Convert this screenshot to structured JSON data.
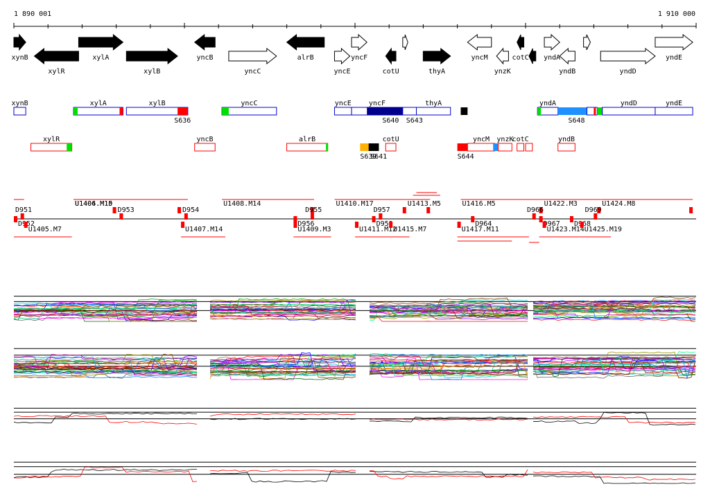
{
  "scale": {
    "start_label": "1 890 001",
    "end_label": "1 910 000",
    "bp_start": 1890001,
    "bp_end": 1910000
  },
  "genes": [
    {
      "name": "xynB",
      "start": 1890001,
      "end": 1890350,
      "strand": "+",
      "fill": "black"
    },
    {
      "name": "xylR",
      "start": 1890600,
      "end": 1891900,
      "strand": "-",
      "fill": "black"
    },
    {
      "name": "xylA",
      "start": 1891900,
      "end": 1893200,
      "strand": "+",
      "fill": "black"
    },
    {
      "name": "xylB",
      "start": 1893300,
      "end": 1894800,
      "strand": "+",
      "fill": "black"
    },
    {
      "name": "yncB",
      "start": 1895300,
      "end": 1895900,
      "strand": "-",
      "fill": "black"
    },
    {
      "name": "yncC",
      "start": 1896300,
      "end": 1897700,
      "strand": "+",
      "fill": "white"
    },
    {
      "name": "alrB",
      "start": 1898000,
      "end": 1899100,
      "strand": "-",
      "fill": "black"
    },
    {
      "name": "yncE",
      "start": 1899400,
      "end": 1899850,
      "strand": "+",
      "fill": "white"
    },
    {
      "name": "yncF",
      "start": 1899900,
      "end": 1900350,
      "strand": "+",
      "fill": "white"
    },
    {
      "name": "cotU",
      "start": 1900900,
      "end": 1901200,
      "strand": "-",
      "fill": "black"
    },
    {
      "name": "",
      "start": 1901400,
      "end": 1901550,
      "strand": "+",
      "fill": "white"
    },
    {
      "name": "thyA",
      "start": 1902000,
      "end": 1902800,
      "strand": "+",
      "fill": "black"
    },
    {
      "name": "yncM",
      "start": 1903300,
      "end": 1904000,
      "strand": "-",
      "fill": "white"
    },
    {
      "name": "ynzK",
      "start": 1904150,
      "end": 1904500,
      "strand": "-",
      "fill": "white"
    },
    {
      "name": "cotC",
      "start": 1904750,
      "end": 1904950,
      "strand": "-",
      "fill": "black"
    },
    {
      "name": "",
      "start": 1905100,
      "end": 1905300,
      "strand": "-",
      "fill": "black"
    },
    {
      "name": "yndA",
      "start": 1905550,
      "end": 1906000,
      "strand": "+",
      "fill": "white"
    },
    {
      "name": "yndB",
      "start": 1906000,
      "end": 1906450,
      "strand": "-",
      "fill": "white"
    },
    {
      "name": "",
      "start": 1906700,
      "end": 1906900,
      "strand": "+",
      "fill": "white"
    },
    {
      "name": "yndD",
      "start": 1907200,
      "end": 1908800,
      "strand": "+",
      "fill": "white"
    },
    {
      "name": "yndE",
      "start": 1908800,
      "end": 1909900,
      "strand": "+",
      "fill": "white"
    }
  ],
  "features_plus": [
    {
      "name": "xynB",
      "start": 1890001,
      "end": 1890350
    },
    {
      "name": "xylA",
      "start": 1891750,
      "end": 1893200,
      "tags": [
        {
          "s": 1891750,
          "e": 1891870,
          "c": "#00e000"
        },
        {
          "s": 1893100,
          "e": 1893200,
          "c": "#ff0000"
        }
      ]
    },
    {
      "name": "xylB",
      "start": 1893300,
      "end": 1895100,
      "tags": [
        {
          "s": 1894800,
          "e": 1895100,
          "c": "#ff0000"
        }
      ],
      "sub": "S636",
      "sub_pos": 1894700
    },
    {
      "name": "yncC",
      "start": 1896100,
      "end": 1897700,
      "tags": [
        {
          "s": 1896100,
          "e": 1896300,
          "c": "#00e000"
        }
      ]
    },
    {
      "name": "yncE",
      "start": 1899400,
      "end": 1899900
    },
    {
      "name": "yncF",
      "start": 1899900,
      "end": 1901400,
      "tags": [
        {
          "s": 1900350,
          "e": 1901400,
          "c": "#00008b"
        },
        {
          "s": 1901450,
          "e": 1901550,
          "c": "#1e90ff"
        },
        {
          "s": 1901550,
          "e": 1901800,
          "c": "#00e000"
        }
      ],
      "sub": "S640",
      "sub_pos": 1900800
    },
    {
      "name": "",
      "start": 1901400,
      "end": 1901800,
      "sub": "S643",
      "sub_pos": 1901500
    },
    {
      "name": "thyA",
      "start": 1901800,
      "end": 1902800
    },
    {
      "name": "",
      "start": 1903100,
      "end": 1903300,
      "solid": "#000000"
    },
    {
      "name": "yndA",
      "start": 1905350,
      "end": 1905950,
      "tags": [
        {
          "s": 1905350,
          "e": 1905450,
          "c": "#00e000"
        },
        {
          "s": 1905950,
          "e": 1906800,
          "c": "#1e90ff"
        }
      ],
      "sub": "S648",
      "sub_pos": 1906250
    },
    {
      "name": "",
      "start": 1906800,
      "end": 1907100,
      "tags": [
        {
          "s": 1907000,
          "e": 1907050,
          "c": "#ff0000"
        },
        {
          "s": 1907100,
          "e": 1907250,
          "c": "#00e000"
        }
      ]
    },
    {
      "name": "yndD",
      "start": 1907250,
      "end": 1908800
    },
    {
      "name": "yndE",
      "start": 1908800,
      "end": 1909900
    }
  ],
  "features_minus": [
    {
      "name": "xylR",
      "start": 1890500,
      "end": 1891700,
      "tags": [
        {
          "s": 1891550,
          "e": 1891700,
          "c": "#00e000"
        }
      ]
    },
    {
      "name": "yncB",
      "start": 1895300,
      "end": 1895900
    },
    {
      "name": "alrB",
      "start": 1898000,
      "end": 1899200,
      "tags": [
        {
          "s": 1899150,
          "e": 1899200,
          "c": "#00e000"
        }
      ]
    },
    {
      "name": "",
      "start": 1900150,
      "end": 1900400,
      "solid": "#ffb000",
      "sub": "S639",
      "sub_pos": 1900150
    },
    {
      "name": "",
      "start": 1900400,
      "end": 1900700,
      "solid": "#000000",
      "sub": "S641",
      "sub_pos": 1900450
    },
    {
      "name": "cotU",
      "start": 1900900,
      "end": 1901200
    },
    {
      "name": "",
      "start": 1903000,
      "end": 1903300,
      "solid": "#ff0000",
      "sub": "S644",
      "sub_pos": 1903000
    },
    {
      "name": "yncM",
      "start": 1903300,
      "end": 1904100,
      "tags": [
        {
          "s": 1904050,
          "e": 1904200,
          "c": "#1e90ff"
        }
      ]
    },
    {
      "name": "ynzK",
      "start": 1904200,
      "end": 1904600
    },
    {
      "name": "cotC",
      "start": 1904750,
      "end": 1904950
    },
    {
      "name": "",
      "start": 1905000,
      "end": 1905200
    },
    {
      "name": "yndB",
      "start": 1905950,
      "end": 1906450
    }
  ],
  "upper_segments": [
    {
      "name": "D951",
      "s": 1890001,
      "e": 1890300,
      "y": 306,
      "anchor": "start"
    },
    {
      "name": "U1406.M15",
      "s": 1891750,
      "e": 1894900,
      "y": 297
    },
    {
      "name": "U1404.M10",
      "s": 1891750,
      "e": 1893000,
      "y": 297
    },
    {
      "name": "D953",
      "s": 1893000,
      "e": 1893200,
      "y": 306
    },
    {
      "name": "D954",
      "s": 1894900,
      "e": 1895100,
      "y": 306
    },
    {
      "name": "U1408.M14",
      "s": 1896100,
      "e": 1898800,
      "y": 297
    },
    {
      "name": "D955",
      "s": 1898500,
      "e": 1898800,
      "y": 306
    },
    {
      "name": "U1410.M17",
      "s": 1899400,
      "e": 1901500,
      "y": 297
    },
    {
      "name": "D957",
      "s": 1900500,
      "e": 1900800,
      "y": 306
    },
    {
      "name": "U1413.M5",
      "s": 1901500,
      "e": 1902200,
      "y": 297
    },
    {
      "name": "U1416.M5",
      "s": 1903100,
      "e": 1905500,
      "y": 297
    },
    {
      "name": "D966",
      "s": 1905000,
      "e": 1905300,
      "y": 306
    },
    {
      "name": "U1422.M3",
      "s": 1905500,
      "e": 1907200,
      "y": 297
    },
    {
      "name": "D969",
      "s": 1906700,
      "e": 1907100,
      "y": 306
    },
    {
      "name": "U1424.M8",
      "s": 1907200,
      "e": 1909900,
      "y": 297
    }
  ],
  "lower_segments": [
    {
      "name": "D952",
      "s": 1890001,
      "e": 1890300,
      "y": 324
    },
    {
      "name": "U1405.M7",
      "s": 1890300,
      "e": 1891700,
      "y": 332
    },
    {
      "name": "U1407.M14",
      "s": 1894900,
      "e": 1896200,
      "y": 332
    },
    {
      "name": "D956",
      "s": 1898200,
      "e": 1898500,
      "y": 324
    },
    {
      "name": "U1409.M3",
      "s": 1898200,
      "e": 1899300,
      "y": 332
    },
    {
      "name": "U1411.M12",
      "s": 1900000,
      "e": 1900800,
      "y": 332
    },
    {
      "name": "D959",
      "s": 1900500,
      "e": 1901000,
      "y": 324
    },
    {
      "name": "U1415.M7",
      "s": 1901000,
      "e": 1901600,
      "y": 332
    },
    {
      "name": "D964",
      "s": 1903400,
      "e": 1903700,
      "y": 324
    },
    {
      "name": "U1417.M11",
      "s": 1903000,
      "e": 1905100,
      "y": 332
    },
    {
      "name": "D967",
      "s": 1905400,
      "e": 1905700,
      "y": 324
    },
    {
      "name": "U1423.M14",
      "s": 1905500,
      "e": 1906600,
      "y": 332
    },
    {
      "name": "D968",
      "s": 1906300,
      "e": 1906600,
      "y": 324
    },
    {
      "name": "U1425.M19",
      "s": 1906600,
      "e": 1907500,
      "y": 332
    }
  ],
  "colors": {
    "red": "#ff0000",
    "green": "#00e000",
    "blue": "#0000cc",
    "navy": "#00008b",
    "sky": "#1e90ff",
    "orange": "#ffb000"
  }
}
